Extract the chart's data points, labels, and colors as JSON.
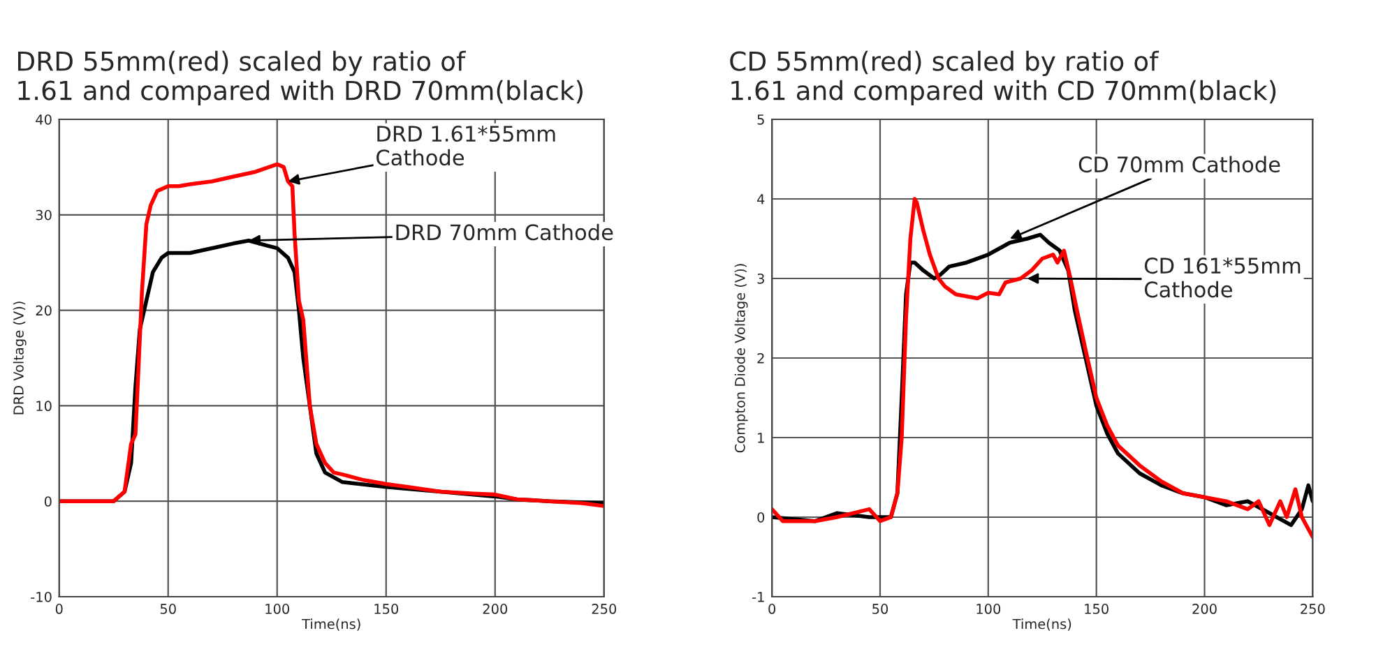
{
  "chart_data": [
    {
      "type": "line",
      "title": "DRD 55mm(red) scaled by ratio of\n1.61 and compared with DRD 70mm(black)",
      "xlabel": "Time(ns)",
      "ylabel": "DRD Voltage (V))",
      "xlim": [
        0,
        250
      ],
      "ylim": [
        -10,
        40
      ],
      "xticks": [
        0,
        50,
        100,
        150,
        200,
        250
      ],
      "yticks": [
        -10,
        0,
        10,
        20,
        30,
        40
      ],
      "grid": true,
      "legend": false,
      "series": [
        {
          "color": "#000000",
          "x": [
            0,
            25,
            30,
            33,
            35,
            37,
            40,
            43,
            47,
            50,
            60,
            70,
            80,
            87,
            95,
            100,
            105,
            108,
            110,
            112,
            115,
            118,
            122,
            130,
            150,
            175,
            200,
            210,
            225,
            250
          ],
          "values": [
            0,
            0,
            1,
            4,
            12,
            18,
            21,
            24,
            25.5,
            26,
            26,
            26.5,
            27,
            27.3,
            26.8,
            26.5,
            25.5,
            24,
            20,
            15,
            10,
            5,
            3,
            2,
            1.5,
            1,
            0.5,
            0.2,
            0,
            -0.2
          ]
        },
        {
          "color": "#ff0000",
          "x": [
            0,
            25,
            30,
            33,
            35,
            36,
            38,
            40,
            42,
            45,
            50,
            55,
            60,
            70,
            80,
            90,
            100,
            103,
            105,
            107,
            108,
            110,
            112,
            115,
            118,
            122,
            126,
            130,
            140,
            150,
            160,
            175,
            190,
            200,
            210,
            225,
            240,
            250
          ],
          "values": [
            0,
            0,
            1,
            6,
            7,
            12,
            22,
            29,
            31,
            32.5,
            33,
            33,
            33.2,
            33.5,
            34,
            34.5,
            35.3,
            35,
            33.5,
            33,
            28,
            21,
            19,
            10,
            6,
            4,
            3,
            2.8,
            2.2,
            1.8,
            1.5,
            1,
            0.8,
            0.7,
            0.2,
            0,
            -0.2,
            -0.5
          ]
        }
      ],
      "annotations": [
        {
          "text": "DRD 1.61*55mm\nCathode",
          "x": 105,
          "y": 33.5
        },
        {
          "text": "DRD 70mm Cathode",
          "x": 87,
          "y": 27.3
        }
      ]
    },
    {
      "type": "line",
      "title": "CD 55mm(red) scaled by ratio of\n1.61 and compared with CD 70mm(black)",
      "xlabel": "Time(ns)",
      "ylabel": "Compton Diode Voltage (V))",
      "xlim": [
        0,
        250
      ],
      "ylim": [
        -1,
        5
      ],
      "xticks": [
        0,
        50,
        100,
        150,
        200,
        250
      ],
      "yticks": [
        -1,
        0,
        1,
        2,
        3,
        4,
        5
      ],
      "grid": true,
      "legend": false,
      "series": [
        {
          "color": "#000000",
          "x": [
            0,
            20,
            30,
            45,
            55,
            58,
            60,
            62,
            64,
            66,
            70,
            75,
            78,
            82,
            90,
            100,
            110,
            118,
            124,
            128,
            133,
            137,
            140,
            145,
            150,
            155,
            160,
            170,
            180,
            190,
            200,
            210,
            220,
            230,
            240,
            245,
            248,
            250
          ],
          "values": [
            0,
            -0.05,
            0.05,
            0,
            0,
            0.3,
            1.5,
            2.8,
            3.2,
            3.2,
            3.1,
            3.0,
            3.05,
            3.15,
            3.2,
            3.3,
            3.45,
            3.5,
            3.55,
            3.45,
            3.35,
            3.1,
            2.6,
            2.0,
            1.4,
            1.05,
            0.8,
            0.55,
            0.4,
            0.3,
            0.25,
            0.15,
            0.2,
            0.05,
            -0.1,
            0.1,
            0.4,
            0.2
          ]
        },
        {
          "color": "#ff0000",
          "x": [
            0,
            5,
            20,
            30,
            45,
            50,
            55,
            58,
            60,
            62,
            64,
            66,
            67,
            70,
            73,
            77,
            80,
            85,
            95,
            100,
            105,
            108,
            115,
            120,
            125,
            130,
            132,
            135,
            138,
            141,
            145,
            150,
            155,
            160,
            170,
            180,
            190,
            200,
            210,
            220,
            225,
            230,
            235,
            238,
            242,
            245,
            250
          ],
          "values": [
            0.1,
            -0.05,
            -0.05,
            0,
            0.1,
            -0.05,
            0,
            0.3,
            1,
            2.5,
            3.5,
            4.0,
            3.95,
            3.6,
            3.3,
            3.0,
            2.9,
            2.8,
            2.75,
            2.82,
            2.8,
            2.95,
            3.0,
            3.1,
            3.25,
            3.3,
            3.2,
            3.35,
            3.0,
            2.6,
            2.1,
            1.5,
            1.15,
            0.9,
            0.65,
            0.45,
            0.3,
            0.25,
            0.2,
            0.1,
            0.2,
            -0.1,
            0.2,
            0,
            0.35,
            0,
            -0.25
          ]
        }
      ],
      "annotations": [
        {
          "text": "CD 70mm Cathode",
          "x": 110,
          "y": 3.5
        },
        {
          "text": "CD 161*55mm\nCathode",
          "x": 118,
          "y": 3.0
        }
      ]
    }
  ]
}
